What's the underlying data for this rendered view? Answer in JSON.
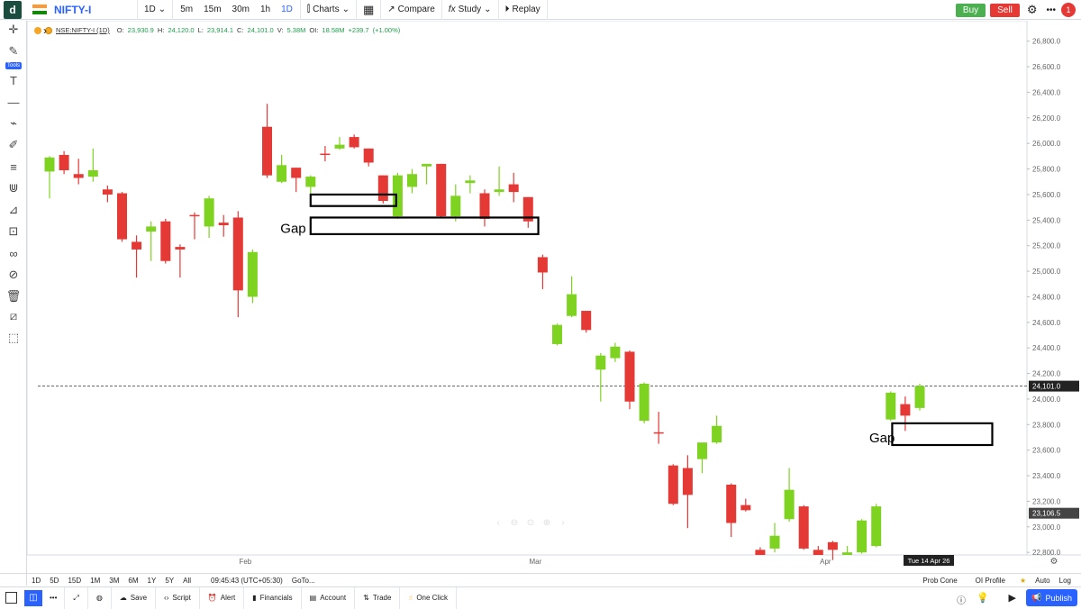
{
  "topbar": {
    "logo": "d",
    "symbol": "NIFTY-I",
    "interval": "1D",
    "quick_intervals": [
      "5m",
      "15m",
      "30m",
      "1h",
      "1D"
    ],
    "charts_label": "Charts",
    "compare_label": "Compare",
    "study_label": "Study",
    "replay_label": "Replay",
    "buy_label": "Buy",
    "sell_label": "Sell",
    "more_label": "•••",
    "notif_count": "1"
  },
  "legend": {
    "symbol": "NSE:NIFTY-I (1D)",
    "open_label": "O:",
    "open": "23,930.9",
    "high_label": "H:",
    "high": "24,120.0",
    "low_label": "L:",
    "low": "23,914.1",
    "close_label": "C:",
    "close": "24,101.0",
    "volume_label": "V:",
    "volume": "5.38M",
    "oi_label": "OI:",
    "oi": "18.58M",
    "change": "+239.7",
    "change_pct": "(+1.00%)"
  },
  "sidebar": {
    "tools_label": "Tools"
  },
  "chart_data": {
    "type": "candlestick",
    "title": "NSE:NIFTY-I (1D)",
    "ylim": [
      22780,
      26960
    ],
    "y_ticks": [
      "26,800.0",
      "26,600.0",
      "26,400.0",
      "26,200.0",
      "26,000.0",
      "25,800.0",
      "25,600.0",
      "25,400.0",
      "25,200.0",
      "25,000.0",
      "24,800.0",
      "24,600.0",
      "24,400.0",
      "24,200.0",
      "24,000.0",
      "23,800.0",
      "23,600.0",
      "23,400.0",
      "23,200.0",
      "23,000.0",
      "22,800.0"
    ],
    "x_labels": [
      {
        "label": "Feb",
        "index": 13.5
      },
      {
        "label": "Mar",
        "index": 33.5
      },
      {
        "label": "Apr",
        "index": 53.5
      }
    ],
    "current_price": "24,101.0",
    "current_value": 24101,
    "marker_price": "23,106.5",
    "marker_value": 23106.5,
    "cursor_date": "Tue 14 Apr 26",
    "candles": [
      {
        "o": 25780,
        "h": 25900,
        "l": 25570,
        "c": 25890
      },
      {
        "o": 25910,
        "h": 25940,
        "l": 25760,
        "c": 25790
      },
      {
        "o": 25760,
        "h": 25880,
        "l": 25680,
        "c": 25730
      },
      {
        "o": 25740,
        "h": 25960,
        "l": 25700,
        "c": 25790
      },
      {
        "o": 25640,
        "h": 25670,
        "l": 25540,
        "c": 25600
      },
      {
        "o": 25610,
        "h": 25620,
        "l": 25230,
        "c": 25250
      },
      {
        "o": 25230,
        "h": 25280,
        "l": 24950,
        "c": 25170
      },
      {
        "o": 25310,
        "h": 25390,
        "l": 25080,
        "c": 25350
      },
      {
        "o": 25390,
        "h": 25410,
        "l": 25060,
        "c": 25080
      },
      {
        "o": 25190,
        "h": 25210,
        "l": 24950,
        "c": 25170
      },
      {
        "o": 25440,
        "h": 25460,
        "l": 25250,
        "c": 25430
      },
      {
        "o": 25350,
        "h": 25590,
        "l": 25260,
        "c": 25570
      },
      {
        "o": 25380,
        "h": 25440,
        "l": 25270,
        "c": 25360
      },
      {
        "o": 25420,
        "h": 25470,
        "l": 24640,
        "c": 24850
      },
      {
        "o": 24800,
        "h": 25170,
        "l": 24750,
        "c": 25150
      },
      {
        "o": 26130,
        "h": 26310,
        "l": 25730,
        "c": 25750
      },
      {
        "o": 25700,
        "h": 25910,
        "l": 25690,
        "c": 25830
      },
      {
        "o": 25810,
        "h": 25810,
        "l": 25620,
        "c": 25730
      },
      {
        "o": 25660,
        "h": 25750,
        "l": 25560,
        "c": 25740
      },
      {
        "o": 25920,
        "h": 25980,
        "l": 25860,
        "c": 25910
      },
      {
        "o": 25960,
        "h": 26050,
        "l": 25950,
        "c": 25990
      },
      {
        "o": 26050,
        "h": 26070,
        "l": 25960,
        "c": 25970
      },
      {
        "o": 25960,
        "h": 25960,
        "l": 25820,
        "c": 25850
      },
      {
        "o": 25750,
        "h": 25750,
        "l": 25530,
        "c": 25550
      },
      {
        "o": 25430,
        "h": 25770,
        "l": 25410,
        "c": 25750
      },
      {
        "o": 25660,
        "h": 25800,
        "l": 25610,
        "c": 25760
      },
      {
        "o": 25820,
        "h": 25840,
        "l": 25680,
        "c": 25840
      },
      {
        "o": 25840,
        "h": 25840,
        "l": 25420,
        "c": 25430
      },
      {
        "o": 25430,
        "h": 25680,
        "l": 25390,
        "c": 25590
      },
      {
        "o": 25690,
        "h": 25750,
        "l": 25610,
        "c": 25710
      },
      {
        "o": 25610,
        "h": 25640,
        "l": 25350,
        "c": 25410
      },
      {
        "o": 25620,
        "h": 25820,
        "l": 25590,
        "c": 25640
      },
      {
        "o": 25680,
        "h": 25770,
        "l": 25540,
        "c": 25620
      },
      {
        "o": 25580,
        "h": 25580,
        "l": 25340,
        "c": 25390
      },
      {
        "o": 25110,
        "h": 25130,
        "l": 24860,
        "c": 24990
      },
      {
        "o": 24430,
        "h": 24590,
        "l": 24420,
        "c": 24580
      },
      {
        "o": 24650,
        "h": 24960,
        "l": 24640,
        "c": 24820
      },
      {
        "o": 24690,
        "h": 24690,
        "l": 24520,
        "c": 24540
      },
      {
        "o": 24230,
        "h": 24360,
        "l": 23980,
        "c": 24340
      },
      {
        "o": 24320,
        "h": 24440,
        "l": 24290,
        "c": 24410
      },
      {
        "o": 24370,
        "h": 24380,
        "l": 23920,
        "c": 23980
      },
      {
        "o": 23830,
        "h": 24130,
        "l": 23810,
        "c": 24120
      },
      {
        "o": 23740,
        "h": 23900,
        "l": 23650,
        "c": 23730
      },
      {
        "o": 23480,
        "h": 23490,
        "l": 23170,
        "c": 23180
      },
      {
        "o": 23460,
        "h": 23560,
        "l": 22990,
        "c": 23250
      },
      {
        "o": 23530,
        "h": 23650,
        "l": 23420,
        "c": 23660
      },
      {
        "o": 23660,
        "h": 23870,
        "l": 23650,
        "c": 23790
      },
      {
        "o": 23330,
        "h": 23340,
        "l": 22920,
        "c": 23030
      },
      {
        "o": 23170,
        "h": 23220,
        "l": 23120,
        "c": 23130
      },
      {
        "o": 22820,
        "h": 22840,
        "l": 22790,
        "c": 22780
      },
      {
        "o": 22830,
        "h": 23030,
        "l": 22800,
        "c": 22930
      },
      {
        "o": 23060,
        "h": 23460,
        "l": 23040,
        "c": 23290
      },
      {
        "o": 23160,
        "h": 23170,
        "l": 22820,
        "c": 22830
      },
      {
        "o": 22820,
        "h": 22850,
        "l": 22790,
        "c": 22780
      },
      {
        "o": 22880,
        "h": 22890,
        "l": 22740,
        "c": 22820
      },
      {
        "o": 22780,
        "h": 22850,
        "l": 22780,
        "c": 22800
      },
      {
        "o": 22800,
        "h": 23060,
        "l": 22790,
        "c": 23050
      },
      {
        "o": 22850,
        "h": 23180,
        "l": 22840,
        "c": 23160
      },
      {
        "o": 23840,
        "h": 24060,
        "l": 23830,
        "c": 24050
      },
      {
        "o": 23960,
        "h": 24020,
        "l": 23750,
        "c": 23870
      },
      {
        "o": 23930,
        "h": 24120,
        "l": 23910,
        "c": 24101
      }
    ],
    "annotations": [
      {
        "type": "rect",
        "from_index": 18,
        "to_index": 23.9,
        "y_top": 25600,
        "y_bottom": 25510
      },
      {
        "type": "rect",
        "from_index": 18,
        "to_index": 33.7,
        "y_top": 25420,
        "y_bottom": 25290
      },
      {
        "type": "rect",
        "from_index": 58.1,
        "to_index": 65,
        "y_top": 23810,
        "y_bottom": 23640
      },
      {
        "type": "text",
        "text": "Gap",
        "at_index": 16.8,
        "y": 25300
      },
      {
        "type": "text",
        "text": "Gap",
        "at_index": 57.4,
        "y": 23660
      }
    ],
    "colors": {
      "up": "#7ed321",
      "down": "#e53935",
      "axis": "#666666",
      "current_label": "#222222",
      "marker_label": "#444444"
    }
  },
  "bottom_range": {
    "items": [
      "1D",
      "5D",
      "15D",
      "1M",
      "3M",
      "6M",
      "1Y",
      "5Y",
      "All"
    ],
    "time": "09:45:43 (UTC+05:30)",
    "goto": "GoTo...",
    "prob_cone": "Prob Cone",
    "oi_profile": "OI Profile",
    "auto": "Auto",
    "log": "Log"
  },
  "bottom_toolbar": {
    "more_label": "•••",
    "save": "Save",
    "script": "Script",
    "alert": "Alert",
    "financials": "Financials",
    "account": "Account",
    "trade": "Trade",
    "one_click": "One Click",
    "publish": "Publish"
  }
}
